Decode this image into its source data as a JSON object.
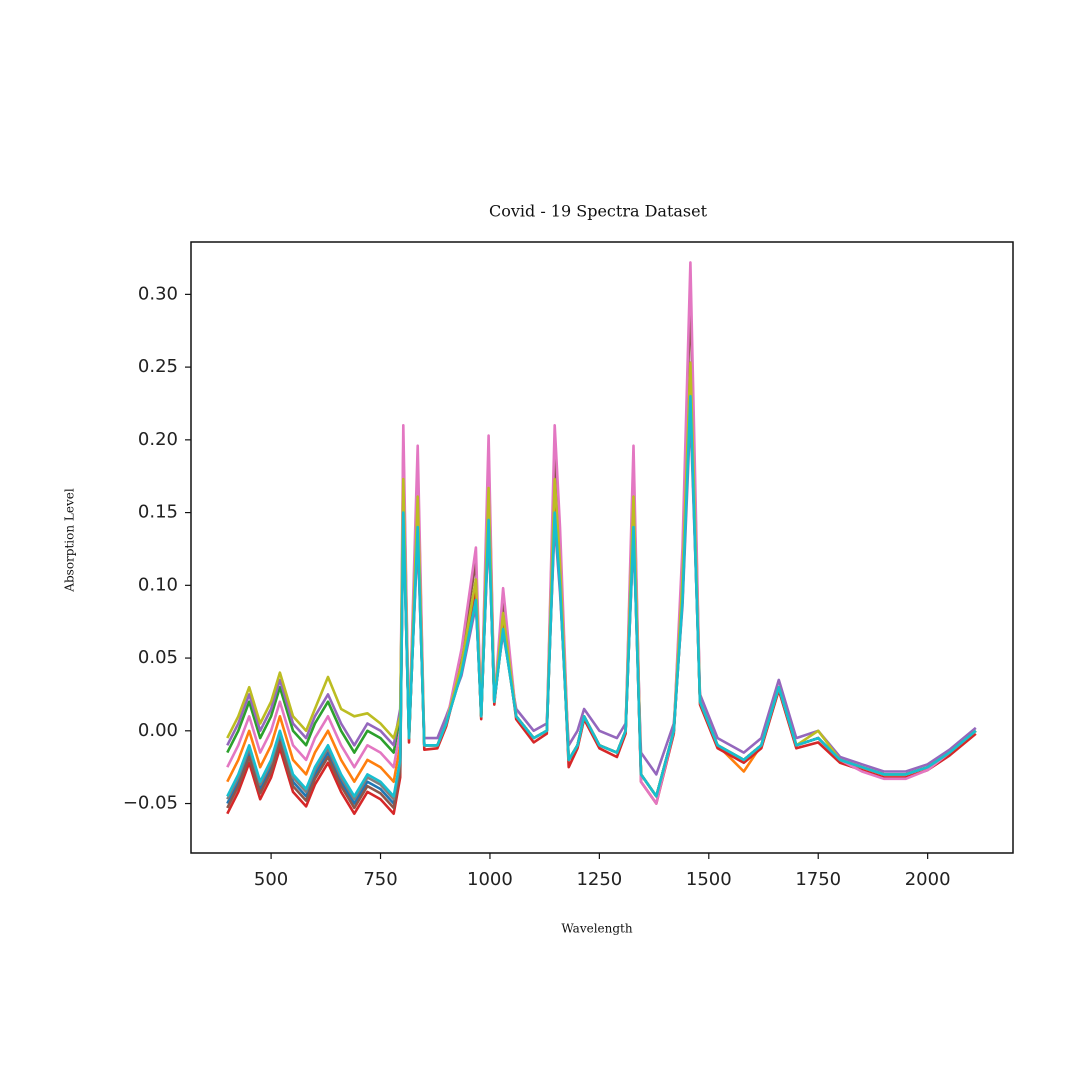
{
  "chart_data": {
    "type": "line",
    "title": "Covid - 19 Spectra Dataset",
    "xlabel": "Wavelength",
    "ylabel": "Absorption Level",
    "x": [
      400,
      425,
      450,
      475,
      500,
      520,
      550,
      580,
      600,
      630,
      660,
      690,
      720,
      750,
      780,
      795,
      802,
      815,
      835,
      850,
      880,
      900,
      935,
      968,
      980,
      997,
      1010,
      1030,
      1060,
      1100,
      1130,
      1148,
      1160,
      1180,
      1200,
      1215,
      1250,
      1290,
      1310,
      1328,
      1345,
      1380,
      1420,
      1440,
      1458,
      1480,
      1520,
      1580,
      1620,
      1660,
      1700,
      1750,
      1800,
      1850,
      1900,
      1950,
      2000,
      2050,
      2110
    ],
    "series": [
      {
        "color": "#1f77b4",
        "values": [
          -0.05,
          -0.035,
          -0.015,
          -0.04,
          -0.025,
          -0.005,
          -0.035,
          -0.045,
          -0.03,
          -0.015,
          -0.035,
          -0.05,
          -0.035,
          -0.04,
          -0.05,
          -0.025,
          0.158,
          -0.005,
          0.147,
          -0.01,
          -0.01,
          0.005,
          0.042,
          0.095,
          0.01,
          0.152,
          0.02,
          0.074,
          0.01,
          -0.005,
          0.0,
          0.158,
          0.105,
          -0.02,
          -0.01,
          0.01,
          -0.01,
          -0.015,
          0.0,
          0.147,
          -0.03,
          -0.045,
          0.0,
          0.095,
          0.242,
          0.02,
          -0.01,
          -0.02,
          -0.01,
          0.03,
          -0.01,
          -0.005,
          -0.02,
          -0.025,
          -0.03,
          -0.03,
          -0.025,
          -0.015,
          0.0
        ]
      },
      {
        "color": "#ff7f0e",
        "values": [
          -0.035,
          -0.02,
          0.0,
          -0.025,
          -0.01,
          0.01,
          -0.02,
          -0.03,
          -0.015,
          0.0,
          -0.02,
          -0.035,
          -0.02,
          -0.025,
          -0.035,
          -0.01,
          0.15,
          -0.005,
          0.14,
          -0.01,
          -0.01,
          0.005,
          0.04,
          0.09,
          0.01,
          0.145,
          0.02,
          0.07,
          0.01,
          -0.005,
          0.0,
          0.15,
          0.1,
          -0.02,
          -0.01,
          0.01,
          -0.01,
          -0.015,
          0.0,
          0.14,
          -0.03,
          -0.045,
          0.0,
          0.09,
          0.23,
          0.02,
          -0.01,
          -0.028,
          -0.01,
          0.03,
          -0.01,
          -0.005,
          -0.02,
          -0.025,
          -0.03,
          -0.03,
          -0.025,
          -0.015,
          0.0
        ]
      },
      {
        "color": "#2ca02c",
        "values": [
          -0.015,
          0.0,
          0.02,
          -0.005,
          0.01,
          0.03,
          0.0,
          -0.01,
          0.005,
          0.02,
          0.0,
          -0.015,
          0.0,
          -0.005,
          -0.015,
          0.01,
          0.158,
          -0.005,
          0.147,
          -0.01,
          -0.01,
          0.005,
          0.042,
          0.095,
          0.01,
          0.152,
          0.02,
          0.074,
          0.01,
          -0.005,
          0.0,
          0.158,
          0.105,
          -0.02,
          -0.01,
          0.01,
          -0.01,
          -0.015,
          0.0,
          0.147,
          -0.03,
          -0.045,
          0.0,
          0.095,
          0.242,
          0.02,
          -0.01,
          -0.02,
          -0.01,
          0.03,
          -0.01,
          -0.005,
          -0.02,
          -0.025,
          -0.03,
          -0.03,
          -0.025,
          -0.015,
          0.0
        ]
      },
      {
        "color": "#d62728",
        "values": [
          -0.057,
          -0.042,
          -0.022,
          -0.047,
          -0.032,
          -0.012,
          -0.042,
          -0.052,
          -0.037,
          -0.022,
          -0.042,
          -0.057,
          -0.042,
          -0.047,
          -0.057,
          -0.032,
          0.165,
          -0.008,
          0.154,
          -0.013,
          -0.012,
          0.003,
          0.044,
          0.099,
          0.008,
          0.16,
          0.018,
          0.077,
          0.008,
          -0.008,
          -0.002,
          0.165,
          0.11,
          -0.025,
          -0.012,
          0.008,
          -0.012,
          -0.018,
          -0.002,
          0.154,
          -0.035,
          -0.05,
          -0.002,
          0.099,
          0.253,
          0.018,
          -0.012,
          -0.022,
          -0.012,
          0.028,
          -0.012,
          -0.008,
          -0.022,
          -0.027,
          -0.032,
          -0.032,
          -0.027,
          -0.017,
          -0.002
        ]
      },
      {
        "color": "#9467bd",
        "values": [
          -0.01,
          0.005,
          0.025,
          0.0,
          0.015,
          0.035,
          0.005,
          -0.005,
          0.01,
          0.025,
          0.005,
          -0.01,
          0.005,
          0.0,
          -0.01,
          0.015,
          0.143,
          0.0,
          0.133,
          -0.005,
          -0.005,
          0.01,
          0.038,
          0.086,
          0.015,
          0.138,
          0.025,
          0.067,
          0.015,
          0.0,
          0.005,
          0.143,
          0.095,
          -0.01,
          0.0,
          0.015,
          0.0,
          -0.005,
          0.005,
          0.133,
          -0.015,
          -0.03,
          0.005,
          0.086,
          0.219,
          0.025,
          -0.005,
          -0.015,
          -0.005,
          0.035,
          -0.005,
          0.0,
          -0.018,
          -0.023,
          -0.028,
          -0.028,
          -0.023,
          -0.013,
          0.002
        ]
      },
      {
        "color": "#8c564b",
        "values": [
          -0.053,
          -0.038,
          -0.018,
          -0.043,
          -0.028,
          -0.008,
          -0.038,
          -0.048,
          -0.033,
          -0.018,
          -0.038,
          -0.053,
          -0.038,
          -0.043,
          -0.053,
          -0.028,
          0.195,
          -0.005,
          0.182,
          -0.01,
          -0.01,
          0.005,
          0.052,
          0.117,
          0.01,
          0.189,
          0.02,
          0.091,
          0.01,
          -0.005,
          0.0,
          0.195,
          0.13,
          -0.02,
          -0.01,
          0.01,
          -0.01,
          -0.015,
          0.0,
          0.182,
          -0.03,
          -0.045,
          0.0,
          0.117,
          0.299,
          0.02,
          -0.01,
          -0.02,
          -0.01,
          0.03,
          -0.01,
          -0.005,
          -0.02,
          -0.025,
          -0.03,
          -0.03,
          -0.025,
          -0.015,
          0.0
        ]
      },
      {
        "color": "#e377c2",
        "values": [
          -0.025,
          -0.01,
          0.01,
          -0.015,
          0.0,
          0.02,
          -0.01,
          -0.02,
          -0.005,
          0.01,
          -0.01,
          -0.025,
          -0.01,
          -0.015,
          -0.025,
          0.0,
          0.21,
          -0.005,
          0.196,
          -0.01,
          -0.01,
          0.005,
          0.056,
          0.126,
          0.01,
          0.203,
          0.02,
          0.098,
          0.01,
          -0.005,
          0.0,
          0.21,
          0.14,
          -0.02,
          -0.01,
          0.01,
          -0.01,
          -0.015,
          0.0,
          0.196,
          -0.035,
          -0.05,
          0.0,
          0.126,
          0.322,
          0.02,
          -0.01,
          -0.02,
          -0.01,
          0.03,
          -0.01,
          -0.005,
          -0.02,
          -0.028,
          -0.033,
          -0.033,
          -0.027,
          -0.015,
          0.0
        ]
      },
      {
        "color": "#7f7f7f",
        "values": [
          -0.047,
          -0.032,
          -0.012,
          -0.037,
          -0.022,
          -0.002,
          -0.032,
          -0.042,
          -0.027,
          -0.012,
          -0.032,
          -0.047,
          -0.032,
          -0.037,
          -0.047,
          -0.022,
          0.15,
          -0.005,
          0.14,
          -0.01,
          -0.01,
          0.005,
          0.04,
          0.09,
          0.01,
          0.145,
          0.02,
          0.07,
          0.01,
          -0.005,
          0.0,
          0.15,
          0.1,
          -0.02,
          -0.01,
          0.01,
          -0.01,
          -0.015,
          0.0,
          0.14,
          -0.03,
          -0.045,
          0.0,
          0.09,
          0.23,
          0.02,
          -0.01,
          -0.02,
          -0.01,
          0.03,
          -0.01,
          -0.005,
          -0.02,
          -0.025,
          -0.03,
          -0.03,
          -0.025,
          -0.015,
          0.0
        ]
      },
      {
        "color": "#bcbd22",
        "values": [
          -0.005,
          0.01,
          0.03,
          0.005,
          0.02,
          0.04,
          0.01,
          0.0,
          0.015,
          0.037,
          0.015,
          0.01,
          0.012,
          0.005,
          -0.005,
          0.01,
          0.173,
          -0.005,
          0.161,
          -0.01,
          -0.01,
          0.005,
          0.046,
          0.104,
          0.01,
          0.167,
          0.02,
          0.081,
          0.01,
          -0.005,
          0.0,
          0.173,
          0.115,
          -0.02,
          -0.01,
          0.01,
          -0.01,
          -0.015,
          0.0,
          0.161,
          -0.03,
          -0.045,
          0.0,
          0.104,
          0.253,
          0.02,
          -0.01,
          -0.02,
          -0.01,
          0.03,
          -0.01,
          0.0,
          -0.02,
          -0.025,
          -0.03,
          -0.03,
          -0.025,
          -0.015,
          0.0
        ]
      },
      {
        "color": "#17becf",
        "values": [
          -0.045,
          -0.03,
          -0.01,
          -0.035,
          -0.02,
          0.0,
          -0.03,
          -0.04,
          -0.025,
          -0.01,
          -0.03,
          -0.045,
          -0.03,
          -0.035,
          -0.045,
          -0.02,
          0.15,
          -0.005,
          0.14,
          -0.01,
          -0.01,
          0.005,
          0.04,
          0.09,
          0.01,
          0.145,
          0.02,
          0.07,
          0.01,
          -0.005,
          0.0,
          0.15,
          0.1,
          -0.02,
          -0.01,
          0.01,
          -0.01,
          -0.015,
          0.0,
          0.14,
          -0.03,
          -0.045,
          0.0,
          0.09,
          0.23,
          0.02,
          -0.01,
          -0.02,
          -0.01,
          0.03,
          -0.01,
          -0.005,
          -0.02,
          -0.025,
          -0.03,
          -0.03,
          -0.025,
          -0.015,
          0.0
        ]
      }
    ],
    "xlim": [
      317,
      2195
    ],
    "ylim": [
      -0.084,
      0.336
    ],
    "xticks": [
      500,
      750,
      1000,
      1250,
      1500,
      1750,
      2000
    ],
    "yticks": [
      {
        "value": -0.05,
        "label": "−0.05"
      },
      {
        "value": 0,
        "label": "0.00"
      },
      {
        "value": 0.05,
        "label": "0.05"
      },
      {
        "value": 0.1,
        "label": "0.10"
      },
      {
        "value": 0.15,
        "label": "0.15"
      },
      {
        "value": 0.2,
        "label": "0.20"
      },
      {
        "value": 0.25,
        "label": "0.25"
      },
      {
        "value": 0.3,
        "label": "0.30"
      }
    ],
    "grid": false
  }
}
